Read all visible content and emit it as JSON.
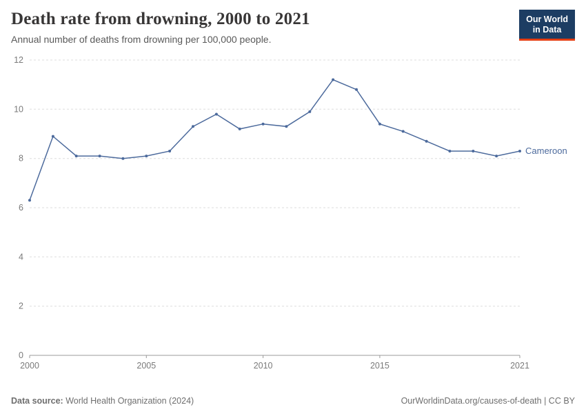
{
  "header": {
    "title": "Death rate from drowning, 2000 to 2021",
    "subtitle": "Annual number of deaths from drowning per 100,000 people.",
    "logo": {
      "line1": "Our World",
      "line2": "in Data",
      "bg": "#1d3d63",
      "accent": "#e63e13"
    }
  },
  "chart_data": {
    "type": "line",
    "title": "Death rate from drowning, 2000 to 2021",
    "xlabel": "",
    "ylabel": "Annual number of deaths from drowning per 100,000 people",
    "x": [
      2000,
      2001,
      2002,
      2003,
      2004,
      2005,
      2006,
      2007,
      2008,
      2009,
      2010,
      2011,
      2012,
      2013,
      2014,
      2015,
      2016,
      2017,
      2018,
      2019,
      2020,
      2021
    ],
    "series": [
      {
        "name": "Cameroon",
        "color": "#4c6a9c",
        "values": [
          6.3,
          8.9,
          8.1,
          8.1,
          8.0,
          8.1,
          8.3,
          9.3,
          9.8,
          9.2,
          9.4,
          9.3,
          9.9,
          11.2,
          10.8,
          9.4,
          9.1,
          8.7,
          8.3,
          8.3,
          8.1,
          8.3
        ]
      }
    ],
    "ylim": [
      0,
      12
    ],
    "yticks": [
      0,
      2,
      4,
      6,
      8,
      10,
      12
    ],
    "xticks": [
      2000,
      2005,
      2010,
      2015,
      2021
    ],
    "grid": true,
    "grid_style": "dashed-horizontal",
    "legend_position": "right-of-line-end",
    "colors": {
      "grid": "#dddddd",
      "axis": "#999999",
      "tick_text": "#7a7a7a"
    }
  },
  "footer": {
    "source_label": "Data source:",
    "source_text": "World Health Organization (2024)",
    "credit": "OurWorldinData.org/causes-of-death | CC BY"
  }
}
